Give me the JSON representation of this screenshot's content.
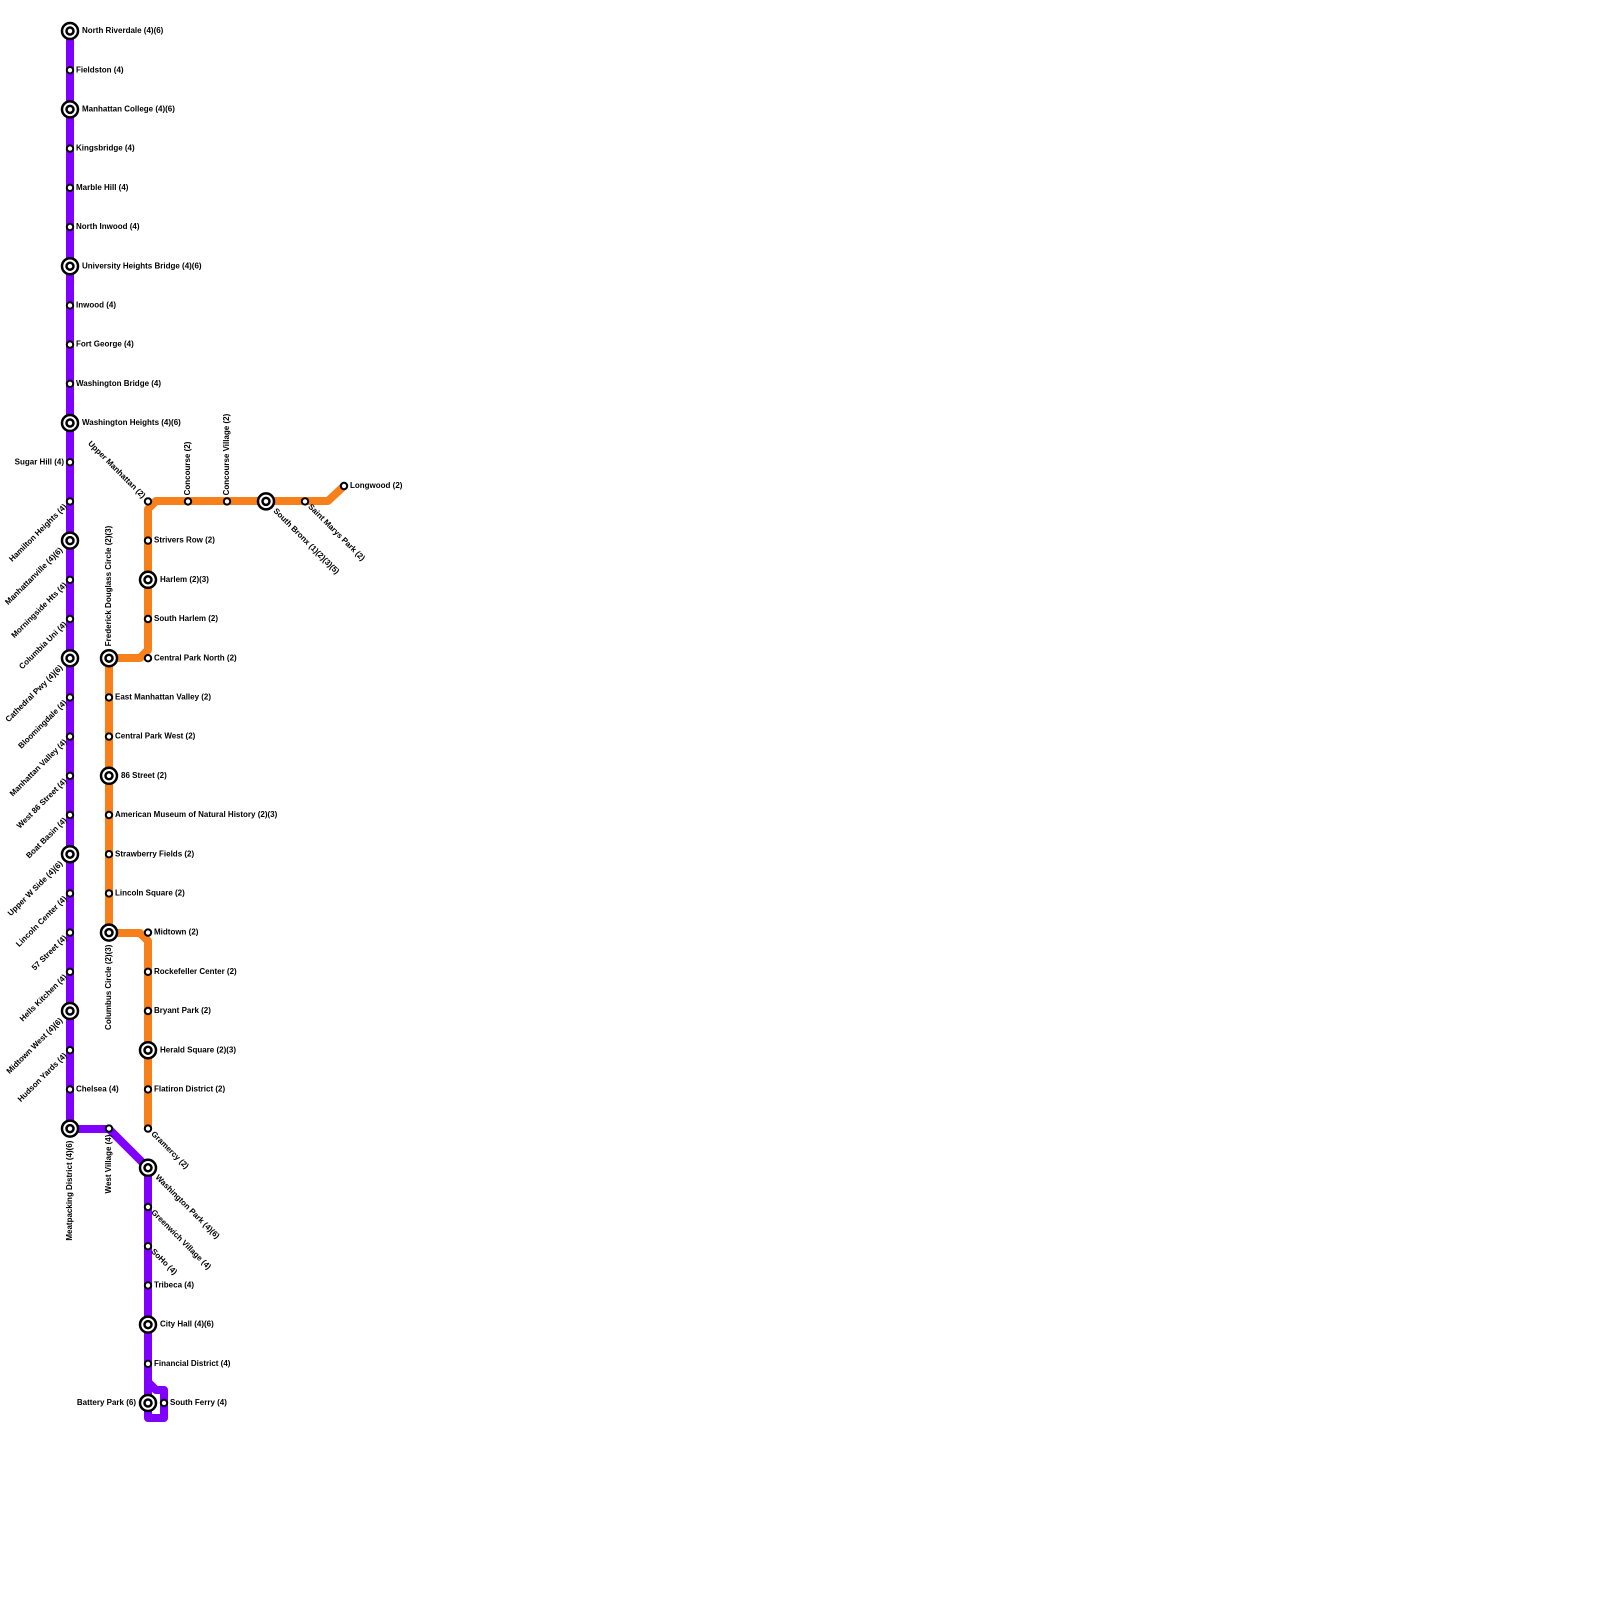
{
  "stations": [
    "North Riverdale (4)(6)",
    "Fieldston (4)",
    "Manhattan College (4)(6)",
    "Kingsbridge (4)",
    "Marble Hill (4)",
    "North Inwood (4)",
    "University Heights Bridge (4)(6)",
    "Inwood (4)",
    "Fort George (4)",
    "Washington Bridge (4)",
    "Washington Heights (4)(6)",
    "Sugar Hill (4)",
    "Hamilton Heights (4)",
    "Manhattanville (4)(6)",
    "Morningside Hts (4)",
    "Columbia Uni (4)",
    "Cathedral Pwy (4)(6)",
    "Bloomingdale (4)",
    "Manhattan Valley (4)",
    "West 86 Street (4)",
    "Boat Basin (4)",
    "Upper W Side (4)(6)",
    "Lincoln Center (4)",
    "57 Street (4)",
    "Hells Kitchen (4)",
    "Midtown West (4)(6)",
    "Hudson Yards (4)",
    "Chelsea (4)",
    "Meatpacking District (4)(6)",
    "West Village (4)",
    "Washington Park (4)(6)",
    "Greenwich Village (4)",
    "SoHo (4)",
    "Tribeca (4)",
    "City Hall (4)(6)",
    "Financial District (4)",
    "Battery Park (6)",
    "South Ferry (4)",
    "Longwood (2)",
    "Saint Marys Park (2)",
    "South Bronx (1)(2)(3)(5)",
    "Concourse Village (2)",
    "Concourse (2)",
    "Upper Manhattan (2)",
    "Strivers Row (2)",
    "Harlem (2)(3)",
    "South Harlem (2)",
    "Central Park North (2)",
    "Frederick Douglass Circle (2)(3)",
    "East Manhattan Valley (2)",
    "Central Park West (2)",
    "86 Street (2)",
    "American Museum of Natural History (2)(3)",
    "Strawberry Fields (2)",
    "Lincoln Square (2)",
    "Columbus Circle (2)(3)",
    "Midtown (2)",
    "Rockefeller Center (2)",
    "Bryant Park (2)",
    "Herald Square (2)(3)",
    "Flatiron District (2)",
    "Gramercy (2)"
  ]
}
